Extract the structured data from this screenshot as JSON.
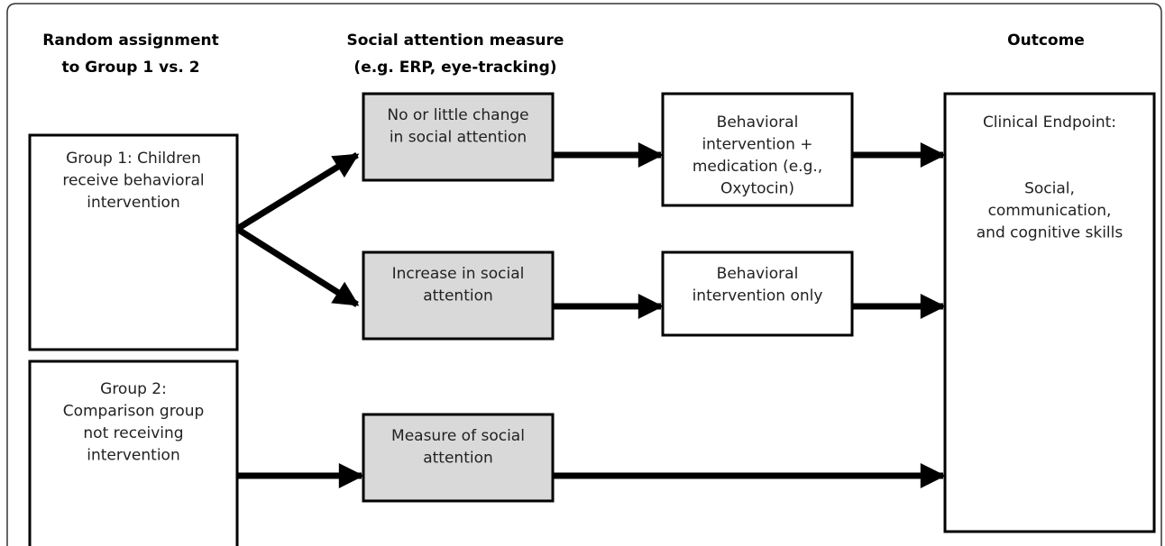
{
  "headers": [
    {
      "lines": [
        "Random assignment",
        "to Group 1 vs. 2"
      ]
    },
    {
      "lines": [
        "Social attention measure",
        "(e.g. ERP, eye-tracking)"
      ]
    },
    {
      "lines": [
        "Outcome"
      ]
    }
  ],
  "nodes": [
    {
      "lines": [
        "Group 1: Children",
        "receive behavioral",
        "intervention"
      ]
    },
    {
      "lines": [
        "Group 2:",
        "Comparison group",
        "not receiving",
        "intervention"
      ]
    },
    {
      "lines": [
        "No or little change",
        "in social attention"
      ]
    },
    {
      "lines": [
        "Increase in social",
        "attention"
      ]
    },
    {
      "lines": [
        "Measure of social",
        "attention"
      ]
    },
    {
      "lines": [
        "Behavioral",
        "intervention +",
        "medication (e.g.,",
        "Oxytocin)"
      ]
    },
    {
      "lines": [
        "Behavioral",
        "intervention only"
      ]
    },
    {
      "lines": [
        "Clinical Endpoint:",
        "",
        "",
        "Social,",
        "communication,",
        "and cognitive skills"
      ]
    }
  ]
}
